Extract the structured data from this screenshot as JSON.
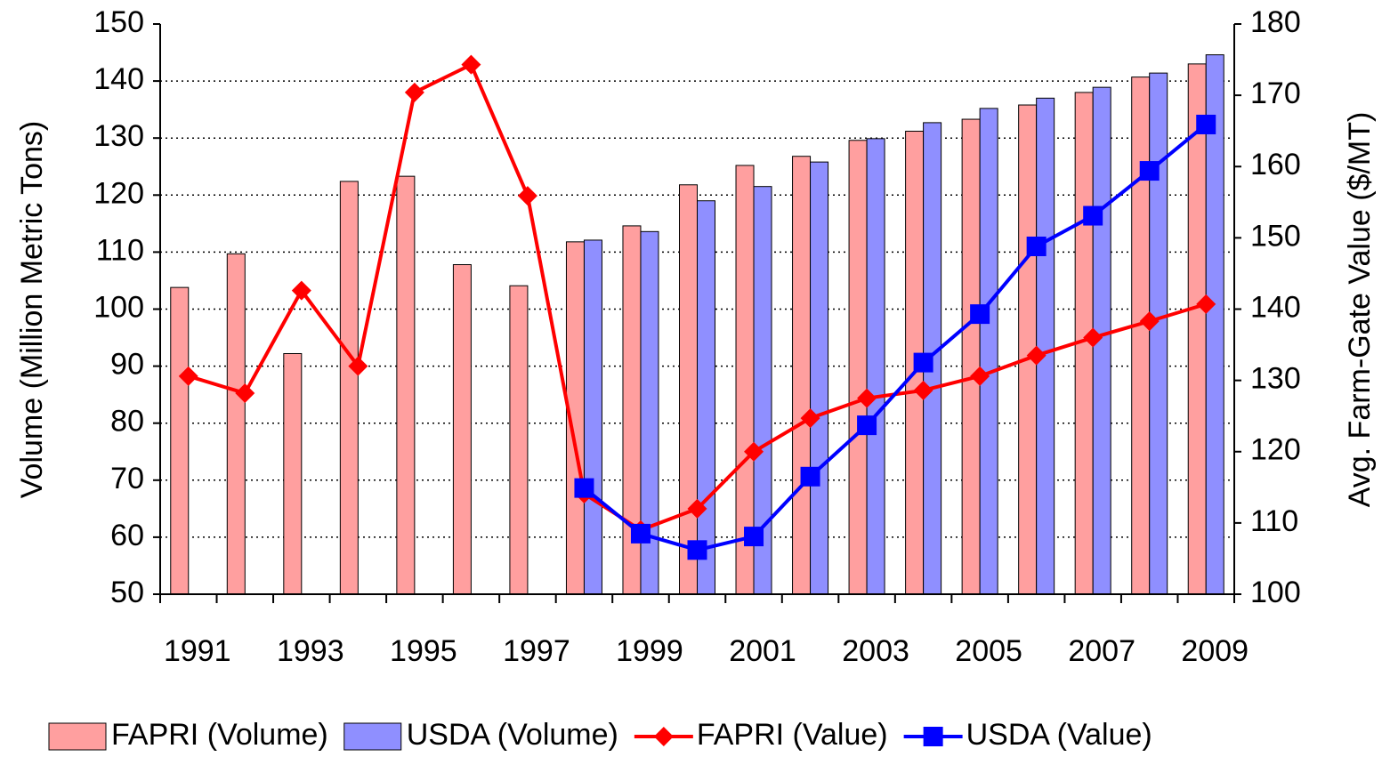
{
  "chart_data": {
    "type": "bar",
    "categories": [
      1991,
      null,
      1993,
      null,
      1995,
      null,
      1997,
      null,
      1999,
      null,
      2001,
      null,
      2003,
      null,
      2005,
      null,
      2007,
      null,
      2009
    ],
    "y_label": "Volume (Million Metric Tons)",
    "y2_label": "Avg. Farm-Gate Value ($/MT)",
    "ylim": [
      50,
      150
    ],
    "yticks": [
      50,
      60,
      70,
      80,
      90,
      100,
      110,
      120,
      130,
      140,
      150
    ],
    "y2lim": [
      100,
      180
    ],
    "y2ticks": [
      100,
      110,
      120,
      130,
      140,
      150,
      160,
      170,
      180
    ],
    "grid": true,
    "legend": "bottom",
    "series": [
      {
        "name": "FAPRI (Volume)",
        "type": "bar",
        "color": "#ff9f9f",
        "values": [
          103.8,
          109.7,
          92.2,
          122.4,
          123.3,
          107.8,
          104.1,
          111.8,
          114.6,
          121.8,
          125.2,
          126.8,
          129.6,
          131.2,
          133.3,
          135.8,
          138,
          140.7,
          143
        ]
      },
      {
        "name": "USDA (Volume)",
        "type": "bar",
        "color": "#8f8fff",
        "values": [
          null,
          null,
          null,
          null,
          null,
          null,
          null,
          112.1,
          113.6,
          119,
          121.5,
          125.8,
          129.9,
          132.7,
          135.2,
          137,
          138.9,
          141.4,
          144.6
        ]
      },
      {
        "name": "FAPRI (Value)",
        "type": "line",
        "axis": "y2",
        "color": "#ff0000",
        "marker": "diamond",
        "values": [
          130.6,
          128.2,
          142.6,
          132,
          170.4,
          174.3,
          155.9,
          114.1,
          109,
          112,
          120,
          124.7,
          127.5,
          128.6,
          130.6,
          133.5,
          136,
          138.3,
          140.7
        ]
      },
      {
        "name": "USDA (Value)",
        "type": "line",
        "axis": "y2",
        "color": "#0000ff",
        "marker": "square",
        "values": [
          null,
          null,
          null,
          null,
          null,
          null,
          null,
          114.9,
          108.5,
          106.2,
          108.1,
          116.5,
          123.7,
          132.5,
          139.3,
          148.8,
          153.1,
          159.4,
          165.9
        ]
      }
    ]
  }
}
